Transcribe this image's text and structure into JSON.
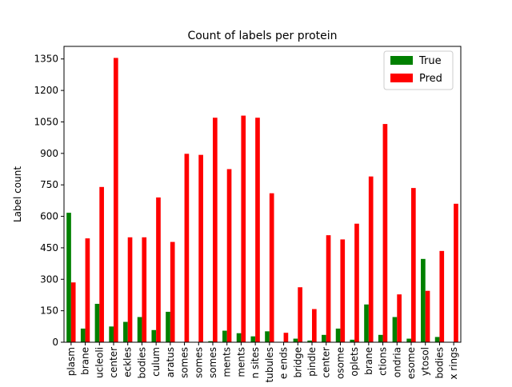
{
  "chart_data": {
    "type": "bar",
    "title": "Count of labels per protein",
    "xlabel": "",
    "ylabel": "Label count",
    "ylim": [
      0,
      1410
    ],
    "yticks": [
      0,
      150,
      300,
      450,
      600,
      750,
      900,
      1050,
      1200,
      1350
    ],
    "grid": false,
    "legend_position": "top-right",
    "categories": [
      "plasm",
      "brane",
      "ucleoli",
      "center",
      "eckles",
      "bodies",
      "culum",
      "aratus",
      "somes",
      "somes",
      "somes",
      "ments",
      "ments",
      "n sites",
      "tubules",
      "e ends",
      "bridge",
      "pindle",
      "center",
      "osome",
      "oplets",
      "brane",
      "ctions",
      "ondria",
      "esome",
      "ytosol",
      "bodies",
      "x rings"
    ],
    "series": [
      {
        "name": "True",
        "color": "#008000",
        "values": [
          617,
          65,
          183,
          75,
          97,
          120,
          58,
          145,
          2,
          2,
          5,
          55,
          43,
          28,
          52,
          0,
          17,
          8,
          35,
          65,
          12,
          180,
          35,
          120,
          17,
          397,
          25,
          0
        ]
      },
      {
        "name": "Pred",
        "color": "#ff0000",
        "values": [
          285,
          495,
          740,
          1355,
          500,
          500,
          690,
          478,
          898,
          893,
          1070,
          825,
          1080,
          1070,
          710,
          45,
          262,
          158,
          510,
          490,
          565,
          790,
          1040,
          228,
          735,
          245,
          435,
          660
        ]
      }
    ]
  }
}
